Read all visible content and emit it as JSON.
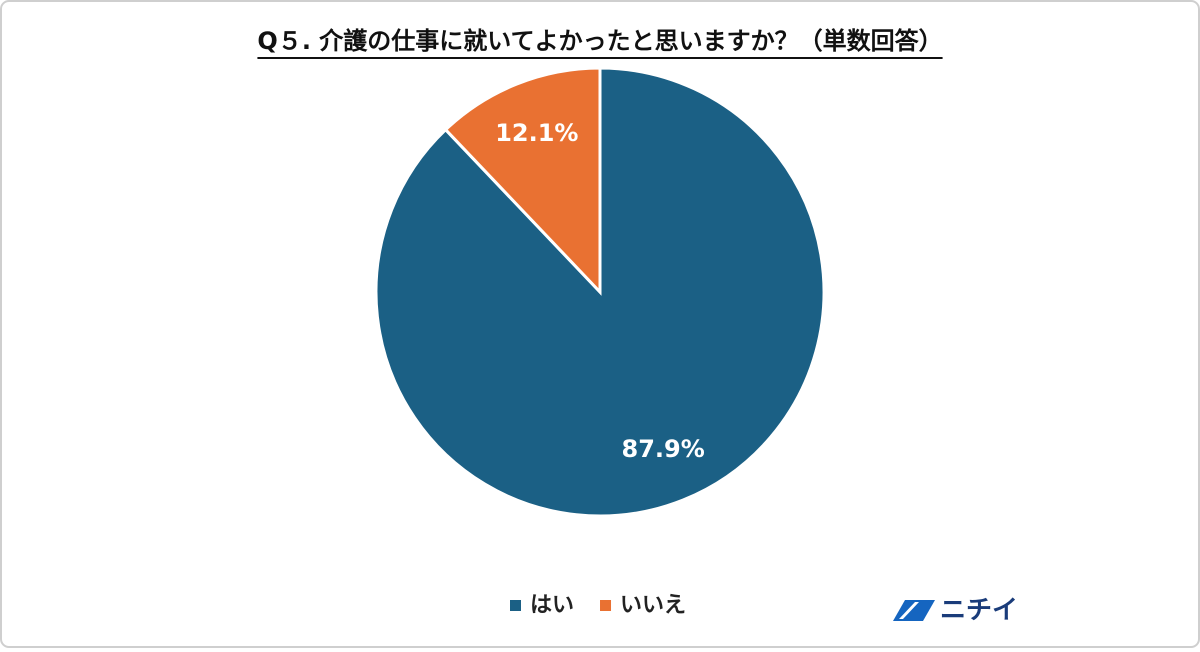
{
  "chart_data": {
    "type": "pie",
    "title": "Q５. 介護の仕事に就いてよかったと思いますか？（単数回答）",
    "categories": [
      "はい",
      "いいえ"
    ],
    "values": [
      87.9,
      12.1
    ],
    "value_labels": [
      "87.9%",
      "12.1%"
    ],
    "colors": [
      "#1b6085",
      "#e97132"
    ],
    "legend": "bottom"
  },
  "logo_text": "ニチイ"
}
